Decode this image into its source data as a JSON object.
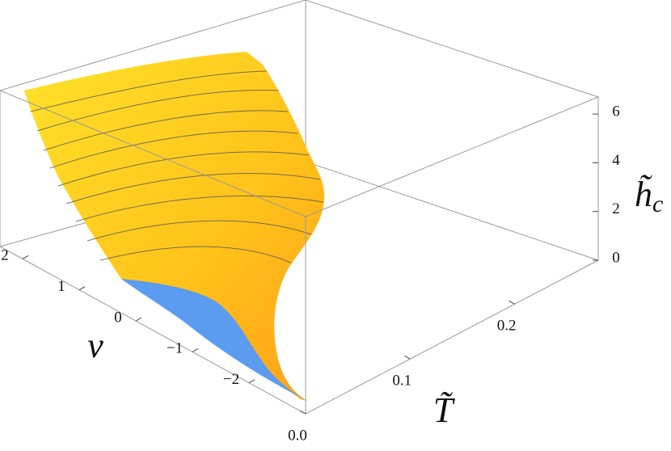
{
  "chart_data": {
    "type": "surface3d",
    "xlabel": "T̃",
    "ylabel": "v",
    "zlabel": {
      "base": "h̃",
      "sub": "c"
    },
    "xlim": [
      0,
      0.28
    ],
    "xticks": [
      {
        "value": 0,
        "label": "0.0"
      },
      0.1,
      0.2
    ],
    "ylim": [
      -3,
      2.4
    ],
    "yticks": [
      2,
      1,
      0,
      {
        "value": -1,
        "label": "−1"
      },
      {
        "value": -2,
        "label": "−2"
      }
    ],
    "zlim": [
      0,
      6.7
    ],
    "zticks": [
      0,
      2,
      4,
      6
    ],
    "colors": [
      "#ffc21a",
      "#5b9cf0"
    ]
  }
}
